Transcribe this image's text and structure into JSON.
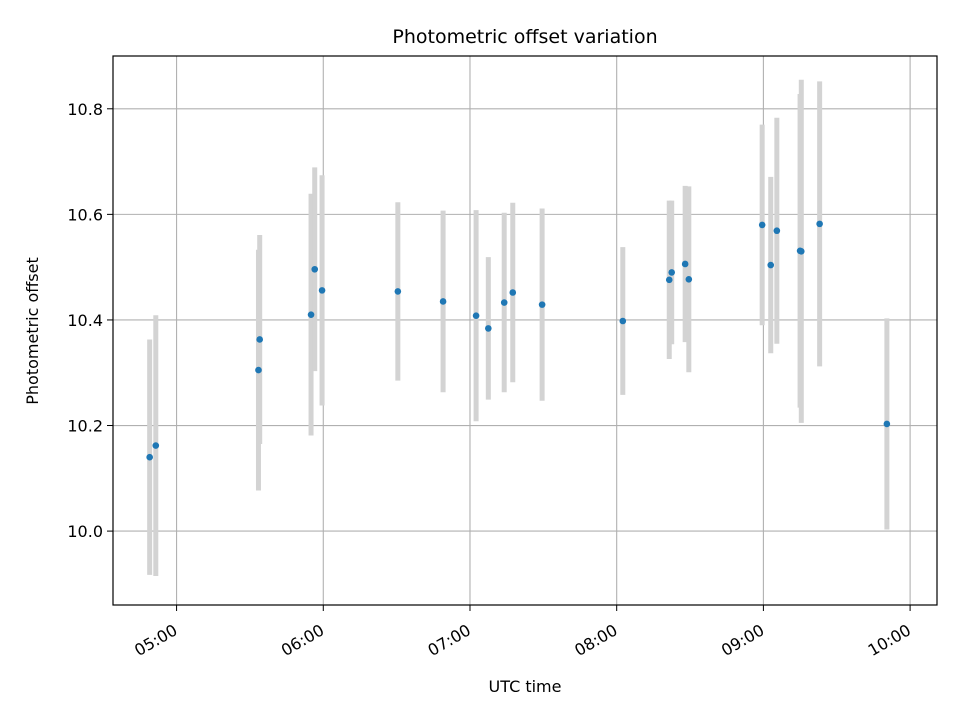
{
  "chart_data": {
    "type": "scatter",
    "title": "Photometric offset variation",
    "xlabel": "UTC time",
    "ylabel": "Photometric offset",
    "grid": true,
    "xlim_minutes": [
      274,
      611
    ],
    "ylim": [
      9.86,
      10.9
    ],
    "x_ticks": [
      {
        "minutes": 300,
        "label": "05:00"
      },
      {
        "minutes": 360,
        "label": "06:00"
      },
      {
        "minutes": 420,
        "label": "07:00"
      },
      {
        "minutes": 480,
        "label": "08:00"
      },
      {
        "minutes": 540,
        "label": "09:00"
      },
      {
        "minutes": 600,
        "label": "10:00"
      }
    ],
    "y_ticks": [
      {
        "value": 10.0,
        "label": "10.0"
      },
      {
        "value": 10.2,
        "label": "10.2"
      },
      {
        "value": 10.4,
        "label": "10.4"
      },
      {
        "value": 10.6,
        "label": "10.6"
      },
      {
        "value": 10.8,
        "label": "10.8"
      }
    ],
    "point_color": "#1f77b4",
    "errorbar_color": "#d3d3d3",
    "points": [
      {
        "t": 289.0,
        "y": 10.14,
        "err": 0.223
      },
      {
        "t": 291.5,
        "y": 10.162,
        "err": 0.247
      },
      {
        "t": 333.5,
        "y": 10.305,
        "err": 0.228
      },
      {
        "t": 334.0,
        "y": 10.363,
        "err": 0.198
      },
      {
        "t": 355.0,
        "y": 10.41,
        "err": 0.229
      },
      {
        "t": 356.5,
        "y": 10.496,
        "err": 0.193
      },
      {
        "t": 359.5,
        "y": 10.456,
        "err": 0.218
      },
      {
        "t": 390.5,
        "y": 10.454,
        "err": 0.169
      },
      {
        "t": 409.0,
        "y": 10.435,
        "err": 0.172
      },
      {
        "t": 422.5,
        "y": 10.408,
        "err": 0.2
      },
      {
        "t": 427.5,
        "y": 10.384,
        "err": 0.135
      },
      {
        "t": 434.0,
        "y": 10.433,
        "err": 0.17
      },
      {
        "t": 437.5,
        "y": 10.452,
        "err": 0.17
      },
      {
        "t": 449.5,
        "y": 10.429,
        "err": 0.182
      },
      {
        "t": 482.5,
        "y": 10.398,
        "err": 0.14
      },
      {
        "t": 501.5,
        "y": 10.476,
        "err": 0.15
      },
      {
        "t": 502.5,
        "y": 10.49,
        "err": 0.136
      },
      {
        "t": 508.0,
        "y": 10.506,
        "err": 0.148
      },
      {
        "t": 509.5,
        "y": 10.477,
        "err": 0.176
      },
      {
        "t": 539.5,
        "y": 10.58,
        "err": 0.19
      },
      {
        "t": 543.0,
        "y": 10.504,
        "err": 0.167
      },
      {
        "t": 545.5,
        "y": 10.569,
        "err": 0.214
      },
      {
        "t": 555.0,
        "y": 10.531,
        "err": 0.297
      },
      {
        "t": 555.5,
        "y": 10.53,
        "err": 0.325
      },
      {
        "t": 563.0,
        "y": 10.582,
        "err": 0.27
      },
      {
        "t": 590.5,
        "y": 10.203,
        "err": 0.2
      }
    ]
  }
}
